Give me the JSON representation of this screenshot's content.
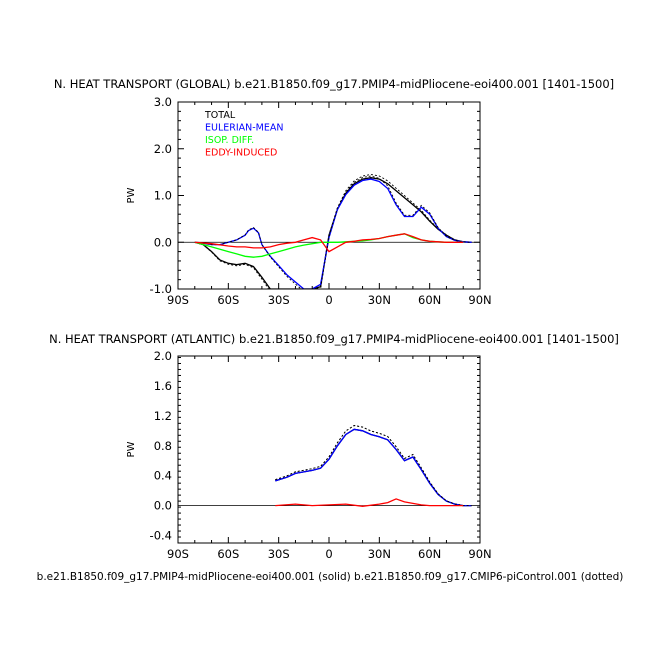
{
  "colors": {
    "total": "#000000",
    "eulerian": "#0000ff",
    "isop": "#00ff00",
    "eddy": "#ff0000"
  },
  "footer": "b.e21.B1850.f09_g17.PMIP4-midPliocene-eoi400.001 (solid) b.e21.B1850.f09_g17.CMIP6-piControl.001 (dotted)",
  "chart_data": [
    {
      "type": "line",
      "title": "N. HEAT TRANSPORT (GLOBAL) b.e21.B1850.f09_g17.PMIP4-midPliocene-eoi400.001  [1401-1500]",
      "ylabel": "PW",
      "xlim": [
        -90,
        90
      ],
      "ylim": [
        -1.0,
        3.0
      ],
      "xticks": [
        -90,
        -60,
        -30,
        0,
        30,
        60,
        90
      ],
      "xticklabels": [
        "90S",
        "60S",
        "30S",
        "0",
        "30N",
        "60N",
        "90N"
      ],
      "yticks": [
        -1.0,
        0.0,
        1.0,
        2.0,
        3.0
      ],
      "yticklabels": [
        "-1.0",
        "0.0",
        "1.0",
        "2.0",
        "3.0"
      ],
      "legend": [
        "TOTAL",
        "EULERIAN-MEAN",
        "ISOP. DIFF.",
        "EDDY-INDUCED"
      ],
      "legend_position": "top-left",
      "series": [
        {
          "name": "TOTAL",
          "style": "solid",
          "color": "total",
          "x": [
            -80,
            -75,
            -70,
            -65,
            -60,
            -55,
            -50,
            -45,
            -40,
            -35,
            -30,
            -25,
            -20,
            -15,
            -10,
            -5,
            0,
            5,
            10,
            15,
            20,
            25,
            30,
            35,
            40,
            45,
            50,
            55,
            60,
            65,
            70,
            75,
            80,
            85
          ],
          "y": [
            0.0,
            -0.05,
            -0.2,
            -0.38,
            -0.45,
            -0.48,
            -0.45,
            -0.52,
            -0.75,
            -1.0,
            -1.0,
            -1.0,
            -1.0,
            -1.0,
            -1.0,
            -0.95,
            0.15,
            0.7,
            1.05,
            1.25,
            1.35,
            1.38,
            1.35,
            1.25,
            1.1,
            0.95,
            0.8,
            0.65,
            0.45,
            0.28,
            0.15,
            0.05,
            0.01,
            0.0
          ]
        },
        {
          "name": "EULERIAN-MEAN",
          "style": "solid",
          "color": "eulerian",
          "x": [
            -80,
            -75,
            -70,
            -65,
            -60,
            -55,
            -50,
            -48,
            -45,
            -42,
            -40,
            -35,
            -30,
            -25,
            -20,
            -15,
            -12,
            -10,
            -5,
            0,
            5,
            10,
            15,
            20,
            25,
            30,
            35,
            40,
            45,
            50,
            55,
            60,
            65,
            70,
            75,
            80,
            85
          ],
          "y": [
            0.0,
            -0.02,
            -0.05,
            -0.05,
            0.0,
            0.05,
            0.15,
            0.25,
            0.3,
            0.2,
            -0.05,
            -0.3,
            -0.5,
            -0.7,
            -0.85,
            -1.0,
            -1.0,
            -1.0,
            -0.9,
            0.1,
            0.7,
            1.02,
            1.22,
            1.32,
            1.35,
            1.3,
            1.15,
            0.8,
            0.55,
            0.55,
            0.75,
            0.6,
            0.3,
            0.12,
            0.04,
            0.01,
            0.0
          ]
        },
        {
          "name": "ISOP. DIFF.",
          "style": "solid",
          "color": "isop",
          "x": [
            -80,
            -70,
            -60,
            -55,
            -50,
            -45,
            -40,
            -35,
            -30,
            -25,
            -20,
            -15,
            -10,
            -5,
            0,
            5,
            10,
            15,
            20,
            25,
            30,
            35,
            40,
            45,
            50,
            55,
            60,
            70,
            80
          ],
          "y": [
            0.0,
            -0.1,
            -0.2,
            -0.25,
            -0.3,
            -0.32,
            -0.3,
            -0.25,
            -0.2,
            -0.15,
            -0.1,
            -0.06,
            -0.03,
            0.0,
            0.0,
            0.0,
            0.01,
            0.02,
            0.03,
            0.05,
            0.08,
            0.12,
            0.15,
            0.18,
            0.1,
            0.05,
            0.02,
            0.0,
            0.0
          ]
        },
        {
          "name": "EDDY-INDUCED",
          "style": "solid",
          "color": "eddy",
          "x": [
            -80,
            -70,
            -60,
            -55,
            -50,
            -45,
            -40,
            -35,
            -30,
            -25,
            -20,
            -15,
            -10,
            -5,
            0,
            5,
            10,
            15,
            20,
            25,
            30,
            35,
            40,
            45,
            50,
            55,
            60,
            70,
            80
          ],
          "y": [
            0.0,
            -0.03,
            -0.08,
            -0.1,
            -0.1,
            -0.12,
            -0.12,
            -0.1,
            -0.05,
            -0.02,
            0.0,
            0.05,
            0.1,
            0.05,
            -0.2,
            -0.1,
            0.0,
            0.02,
            0.05,
            0.06,
            0.08,
            0.12,
            0.15,
            0.18,
            0.12,
            0.05,
            0.02,
            0.0,
            0.0
          ]
        }
      ]
    },
    {
      "type": "line",
      "title": "N. HEAT TRANSPORT (ATLANTIC) b.e21.B1850.f09_g17.PMIP4-midPliocene-eoi400.001  [1401-1500]",
      "ylabel": "PW",
      "xlim": [
        -90,
        90
      ],
      "ylim": [
        -0.5,
        2.0
      ],
      "xticks": [
        -90,
        -60,
        -30,
        0,
        30,
        60,
        90
      ],
      "xticklabels": [
        "90S",
        "60S",
        "30S",
        "0",
        "30N",
        "60N",
        "90N"
      ],
      "yticks": [
        -0.4,
        0.0,
        0.4,
        0.8,
        1.2,
        1.6,
        2.0
      ],
      "yticklabels": [
        "-0.4",
        "0.0",
        "0.4",
        "0.8",
        "1.2",
        "1.6",
        "2.0"
      ],
      "series": [
        {
          "name": "TOTAL",
          "style": "solid",
          "color": "total",
          "x": [
            -32,
            -25,
            -20,
            -15,
            -10,
            -5,
            0,
            5,
            10,
            15,
            20,
            25,
            30,
            35,
            40,
            45,
            50,
            55,
            60,
            65,
            70,
            75,
            80,
            85
          ],
          "y": [
            0.33,
            0.38,
            0.43,
            0.45,
            0.47,
            0.5,
            0.62,
            0.8,
            0.95,
            1.02,
            1.0,
            0.95,
            0.92,
            0.88,
            0.75,
            0.6,
            0.65,
            0.48,
            0.3,
            0.15,
            0.06,
            0.02,
            0.0,
            0.0
          ]
        },
        {
          "name": "EULERIAN-MEAN",
          "style": "solid",
          "color": "eulerian",
          "x": [
            -32,
            -25,
            -20,
            -15,
            -10,
            -5,
            0,
            5,
            10,
            15,
            20,
            25,
            30,
            35,
            40,
            45,
            50,
            55,
            60,
            65,
            70,
            75,
            80,
            85
          ],
          "y": [
            0.33,
            0.38,
            0.43,
            0.45,
            0.47,
            0.5,
            0.62,
            0.8,
            0.95,
            1.02,
            1.0,
            0.95,
            0.92,
            0.88,
            0.75,
            0.6,
            0.65,
            0.48,
            0.3,
            0.15,
            0.06,
            0.02,
            0.0,
            0.0
          ]
        },
        {
          "name": "EDDY-INDUCED",
          "style": "solid",
          "color": "eddy",
          "x": [
            -32,
            -20,
            -10,
            0,
            10,
            20,
            30,
            35,
            40,
            45,
            50,
            55,
            60,
            70,
            80
          ],
          "y": [
            0.0,
            0.02,
            0.0,
            0.01,
            0.02,
            -0.01,
            0.02,
            0.04,
            0.09,
            0.05,
            0.03,
            0.01,
            0.0,
            0.0,
            0.0
          ]
        }
      ]
    }
  ]
}
